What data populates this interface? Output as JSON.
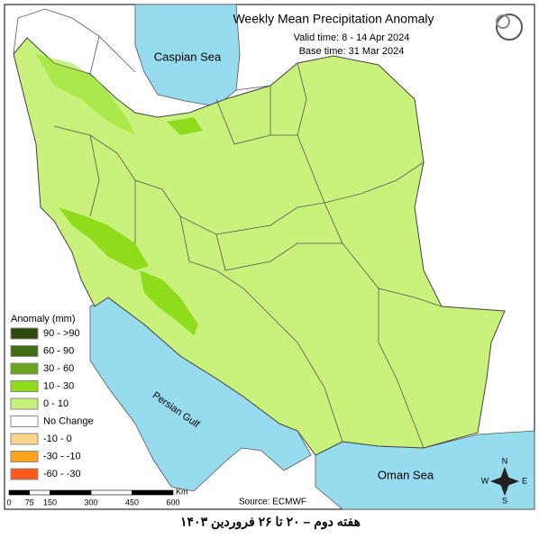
{
  "header": {
    "title": "Weekly Mean Precipitation Anomaly",
    "valid_time": "Valid time: 8 - 14 Apr 2024",
    "base_time": "Base time: 31 Mar 2024"
  },
  "labels": {
    "caspian": "Caspian Sea",
    "persian_gulf": "Persian Gulf",
    "oman_sea": "Oman Sea"
  },
  "legend": {
    "title": "Anomaly (mm)",
    "items": [
      {
        "label": "90 - >90",
        "color": "#2d4a0e"
      },
      {
        "label": "60 - 90",
        "color": "#3f6e12"
      },
      {
        "label": "30 - 60",
        "color": "#6aa31c"
      },
      {
        "label": "10 - 30",
        "color": "#8fdc1c"
      },
      {
        "label": "0 - 10",
        "color": "#c8f27c"
      },
      {
        "label": "No Change",
        "color": "#ffffff"
      },
      {
        "label": "-10 - 0",
        "color": "#ffd68a"
      },
      {
        "label": "-30 - -10",
        "color": "#ffa31a"
      },
      {
        "label": "-60 - -30",
        "color": "#ff5a1a"
      }
    ]
  },
  "scale_bar": {
    "ticks": [
      0,
      75,
      150,
      300,
      450,
      600
    ],
    "unit": "Km"
  },
  "source": "Source: ECMWF",
  "compass": {
    "n": "N",
    "s": "S",
    "e": "E",
    "w": "W"
  },
  "caption": "هفته دوم – ۲۰ تا ۲۶ فروردین ۱۴۰۳"
}
